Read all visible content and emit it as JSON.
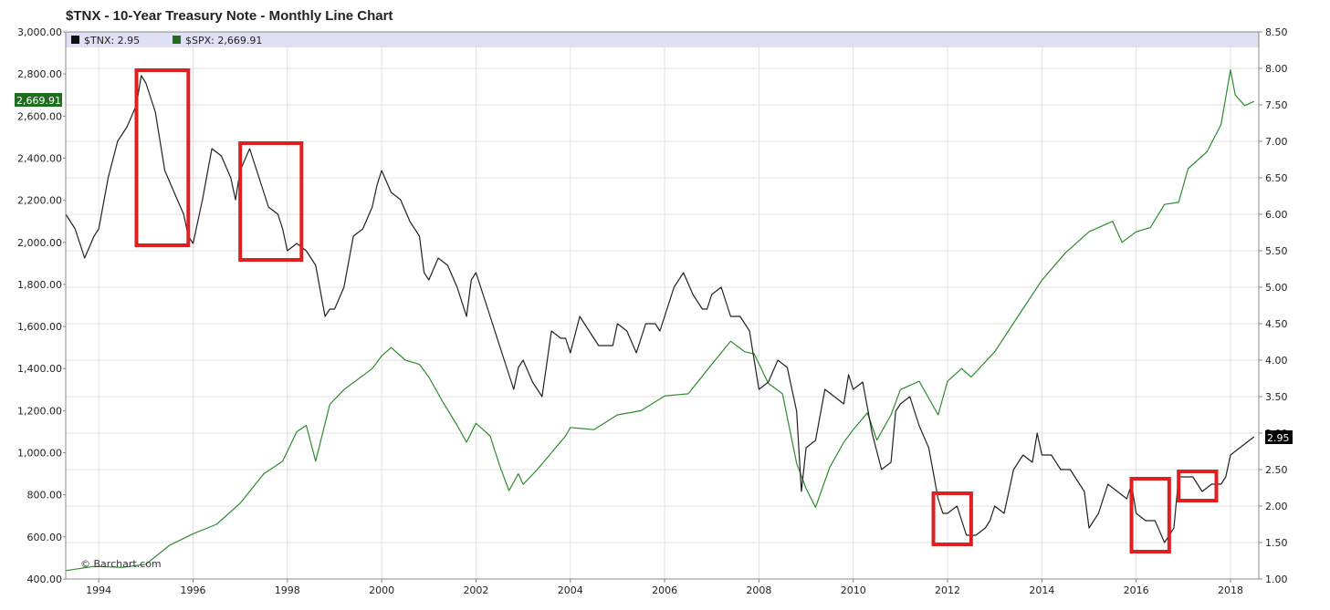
{
  "chart_data": {
    "type": "line",
    "title": "$TNX - 10-Year Treasury Note - Monthly Line Chart",
    "credit": "© Barchart.com",
    "x_range": [
      1993.3,
      2018.6
    ],
    "x_ticks": [
      "1994",
      "1996",
      "1998",
      "2000",
      "2002",
      "2004",
      "2006",
      "2008",
      "2010",
      "2012",
      "2014",
      "2016",
      "2018"
    ],
    "y_left": {
      "range": [
        400,
        3000
      ],
      "ticks": [
        "3,000.00",
        "2,800.00",
        "2,600.00",
        "2,400.00",
        "2,200.00",
        "2,000.00",
        "1,800.00",
        "1,600.00",
        "1,400.00",
        "1,200.00",
        "1,000.00",
        "800.00",
        "600.00",
        "400.00"
      ]
    },
    "y_right": {
      "range": [
        1.0,
        8.5
      ],
      "ticks": [
        "8.50",
        "8.00",
        "7.50",
        "7.00",
        "6.50",
        "6.00",
        "5.50",
        "5.00",
        "4.50",
        "4.00",
        "3.50",
        "3.00",
        "2.50",
        "2.00",
        "1.50",
        "1.00"
      ]
    },
    "grid": true,
    "legend_position": "top-left",
    "series": [
      {
        "name": "$TNX",
        "legend": "$TNX: 2.95",
        "last_value": "2.95",
        "axis": "right",
        "color": "#222222",
        "points": [
          [
            1993.3,
            6.0
          ],
          [
            1993.5,
            5.8
          ],
          [
            1993.7,
            5.4
          ],
          [
            1993.9,
            5.7
          ],
          [
            1994.0,
            5.8
          ],
          [
            1994.2,
            6.5
          ],
          [
            1994.4,
            7.0
          ],
          [
            1994.6,
            7.2
          ],
          [
            1994.8,
            7.5
          ],
          [
            1994.9,
            7.9
          ],
          [
            1995.0,
            7.8
          ],
          [
            1995.2,
            7.4
          ],
          [
            1995.4,
            6.6
          ],
          [
            1995.6,
            6.3
          ],
          [
            1995.8,
            6.0
          ],
          [
            1995.9,
            5.7
          ],
          [
            1996.0,
            5.6
          ],
          [
            1996.2,
            6.2
          ],
          [
            1996.4,
            6.9
          ],
          [
            1996.6,
            6.8
          ],
          [
            1996.8,
            6.5
          ],
          [
            1996.9,
            6.2
          ],
          [
            1997.0,
            6.6
          ],
          [
            1997.2,
            6.9
          ],
          [
            1997.4,
            6.5
          ],
          [
            1997.6,
            6.1
          ],
          [
            1997.8,
            6.0
          ],
          [
            1997.9,
            5.8
          ],
          [
            1998.0,
            5.5
          ],
          [
            1998.2,
            5.6
          ],
          [
            1998.4,
            5.5
          ],
          [
            1998.6,
            5.3
          ],
          [
            1998.8,
            4.6
          ],
          [
            1998.9,
            4.7
          ],
          [
            1999.0,
            4.7
          ],
          [
            1999.2,
            5.0
          ],
          [
            1999.4,
            5.7
          ],
          [
            1999.6,
            5.8
          ],
          [
            1999.8,
            6.1
          ],
          [
            1999.9,
            6.4
          ],
          [
            2000.0,
            6.6
          ],
          [
            2000.2,
            6.3
          ],
          [
            2000.4,
            6.2
          ],
          [
            2000.6,
            5.9
          ],
          [
            2000.8,
            5.7
          ],
          [
            2000.9,
            5.2
          ],
          [
            2001.0,
            5.1
          ],
          [
            2001.2,
            5.4
          ],
          [
            2001.4,
            5.3
          ],
          [
            2001.6,
            5.0
          ],
          [
            2001.8,
            4.6
          ],
          [
            2001.9,
            5.1
          ],
          [
            2002.0,
            5.2
          ],
          [
            2002.2,
            4.8
          ],
          [
            2002.4,
            4.4
          ],
          [
            2002.6,
            4.0
          ],
          [
            2002.8,
            3.6
          ],
          [
            2002.9,
            3.9
          ],
          [
            2003.0,
            4.0
          ],
          [
            2003.2,
            3.7
          ],
          [
            2003.4,
            3.5
          ],
          [
            2003.6,
            4.4
          ],
          [
            2003.8,
            4.3
          ],
          [
            2003.9,
            4.3
          ],
          [
            2004.0,
            4.1
          ],
          [
            2004.2,
            4.6
          ],
          [
            2004.4,
            4.4
          ],
          [
            2004.6,
            4.2
          ],
          [
            2004.8,
            4.2
          ],
          [
            2004.9,
            4.2
          ],
          [
            2005.0,
            4.5
          ],
          [
            2005.2,
            4.4
          ],
          [
            2005.4,
            4.1
          ],
          [
            2005.6,
            4.5
          ],
          [
            2005.8,
            4.5
          ],
          [
            2005.9,
            4.4
          ],
          [
            2006.0,
            4.6
          ],
          [
            2006.2,
            5.0
          ],
          [
            2006.4,
            5.2
          ],
          [
            2006.6,
            4.9
          ],
          [
            2006.8,
            4.7
          ],
          [
            2006.9,
            4.7
          ],
          [
            2007.0,
            4.9
          ],
          [
            2007.2,
            5.0
          ],
          [
            2007.4,
            4.6
          ],
          [
            2007.6,
            4.6
          ],
          [
            2007.8,
            4.4
          ],
          [
            2007.9,
            4.0
          ],
          [
            2008.0,
            3.6
          ],
          [
            2008.2,
            3.7
          ],
          [
            2008.4,
            4.0
          ],
          [
            2008.6,
            3.9
          ],
          [
            2008.8,
            3.3
          ],
          [
            2008.9,
            2.2
          ],
          [
            2009.0,
            2.8
          ],
          [
            2009.2,
            2.9
          ],
          [
            2009.4,
            3.6
          ],
          [
            2009.6,
            3.5
          ],
          [
            2009.8,
            3.4
          ],
          [
            2009.9,
            3.8
          ],
          [
            2010.0,
            3.6
          ],
          [
            2010.2,
            3.7
          ],
          [
            2010.4,
            3.0
          ],
          [
            2010.6,
            2.5
          ],
          [
            2010.8,
            2.6
          ],
          [
            2010.9,
            3.3
          ],
          [
            2011.0,
            3.4
          ],
          [
            2011.2,
            3.5
          ],
          [
            2011.4,
            3.1
          ],
          [
            2011.6,
            2.8
          ],
          [
            2011.8,
            2.1
          ],
          [
            2011.9,
            1.9
          ],
          [
            2012.0,
            1.9
          ],
          [
            2012.2,
            2.0
          ],
          [
            2012.4,
            1.6
          ],
          [
            2012.6,
            1.6
          ],
          [
            2012.8,
            1.7
          ],
          [
            2012.9,
            1.8
          ],
          [
            2013.0,
            2.0
          ],
          [
            2013.2,
            1.9
          ],
          [
            2013.4,
            2.5
          ],
          [
            2013.6,
            2.7
          ],
          [
            2013.8,
            2.6
          ],
          [
            2013.9,
            3.0
          ],
          [
            2014.0,
            2.7
          ],
          [
            2014.2,
            2.7
          ],
          [
            2014.4,
            2.5
          ],
          [
            2014.6,
            2.5
          ],
          [
            2014.8,
            2.3
          ],
          [
            2014.9,
            2.2
          ],
          [
            2015.0,
            1.7
          ],
          [
            2015.2,
            1.9
          ],
          [
            2015.4,
            2.3
          ],
          [
            2015.6,
            2.2
          ],
          [
            2015.8,
            2.1
          ],
          [
            2015.9,
            2.3
          ],
          [
            2016.0,
            1.9
          ],
          [
            2016.2,
            1.8
          ],
          [
            2016.4,
            1.8
          ],
          [
            2016.6,
            1.5
          ],
          [
            2016.8,
            1.7
          ],
          [
            2016.9,
            2.4
          ],
          [
            2017.0,
            2.4
          ],
          [
            2017.2,
            2.4
          ],
          [
            2017.4,
            2.2
          ],
          [
            2017.6,
            2.3
          ],
          [
            2017.8,
            2.3
          ],
          [
            2017.9,
            2.4
          ],
          [
            2018.0,
            2.7
          ],
          [
            2018.2,
            2.8
          ],
          [
            2018.4,
            2.9
          ],
          [
            2018.5,
            2.95
          ]
        ]
      },
      {
        "name": "$SPX",
        "legend": "$SPX: 2,669.91",
        "last_value": "2,669.91",
        "axis": "left",
        "color": "#2e8b2e",
        "points": [
          [
            1993.3,
            440
          ],
          [
            1993.9,
            460
          ],
          [
            1994.5,
            455
          ],
          [
            1995.0,
            470
          ],
          [
            1995.5,
            560
          ],
          [
            1996.0,
            615
          ],
          [
            1996.5,
            660
          ],
          [
            1997.0,
            760
          ],
          [
            1997.5,
            900
          ],
          [
            1997.9,
            960
          ],
          [
            1998.2,
            1100
          ],
          [
            1998.4,
            1130
          ],
          [
            1998.6,
            960
          ],
          [
            1998.9,
            1230
          ],
          [
            1999.2,
            1300
          ],
          [
            1999.5,
            1350
          ],
          [
            1999.8,
            1400
          ],
          [
            2000.0,
            1460
          ],
          [
            2000.2,
            1500
          ],
          [
            2000.5,
            1440
          ],
          [
            2000.8,
            1420
          ],
          [
            2001.0,
            1360
          ],
          [
            2001.3,
            1240
          ],
          [
            2001.6,
            1130
          ],
          [
            2001.8,
            1050
          ],
          [
            2002.0,
            1140
          ],
          [
            2002.3,
            1080
          ],
          [
            2002.5,
            940
          ],
          [
            2002.7,
            820
          ],
          [
            2002.9,
            900
          ],
          [
            2003.0,
            850
          ],
          [
            2003.3,
            920
          ],
          [
            2003.6,
            1000
          ],
          [
            2003.9,
            1080
          ],
          [
            2004.0,
            1120
          ],
          [
            2004.5,
            1110
          ],
          [
            2005.0,
            1180
          ],
          [
            2005.5,
            1200
          ],
          [
            2006.0,
            1270
          ],
          [
            2006.5,
            1280
          ],
          [
            2007.0,
            1420
          ],
          [
            2007.4,
            1530
          ],
          [
            2007.7,
            1480
          ],
          [
            2007.9,
            1470
          ],
          [
            2008.2,
            1330
          ],
          [
            2008.5,
            1280
          ],
          [
            2008.8,
            950
          ],
          [
            2009.0,
            830
          ],
          [
            2009.2,
            740
          ],
          [
            2009.5,
            930
          ],
          [
            2009.8,
            1050
          ],
          [
            2010.0,
            1110
          ],
          [
            2010.3,
            1190
          ],
          [
            2010.5,
            1060
          ],
          [
            2010.8,
            1180
          ],
          [
            2011.0,
            1300
          ],
          [
            2011.4,
            1340
          ],
          [
            2011.8,
            1180
          ],
          [
            2012.0,
            1340
          ],
          [
            2012.3,
            1400
          ],
          [
            2012.5,
            1360
          ],
          [
            2013.0,
            1480
          ],
          [
            2013.5,
            1650
          ],
          [
            2014.0,
            1820
          ],
          [
            2014.5,
            1950
          ],
          [
            2015.0,
            2050
          ],
          [
            2015.5,
            2100
          ],
          [
            2015.7,
            2000
          ],
          [
            2016.0,
            2050
          ],
          [
            2016.3,
            2070
          ],
          [
            2016.6,
            2180
          ],
          [
            2016.9,
            2190
          ],
          [
            2017.1,
            2350
          ],
          [
            2017.5,
            2430
          ],
          [
            2017.8,
            2560
          ],
          [
            2018.0,
            2820
          ],
          [
            2018.1,
            2700
          ],
          [
            2018.3,
            2650
          ],
          [
            2018.5,
            2670
          ]
        ]
      }
    ],
    "annotations": [
      {
        "type": "rectangle",
        "color": "#e02020",
        "x_range": [
          1994.8,
          1995.9
        ]
      },
      {
        "type": "rectangle",
        "color": "#e02020",
        "x_range": [
          1997.0,
          1998.3
        ]
      },
      {
        "type": "rectangle",
        "color": "#e02020",
        "x_range": [
          2011.7,
          2012.5
        ]
      },
      {
        "type": "rectangle",
        "color": "#e02020",
        "x_range": [
          2015.9,
          2016.7
        ]
      },
      {
        "type": "rectangle",
        "color": "#e02020",
        "x_range": [
          2016.9,
          2017.7
        ]
      }
    ]
  }
}
